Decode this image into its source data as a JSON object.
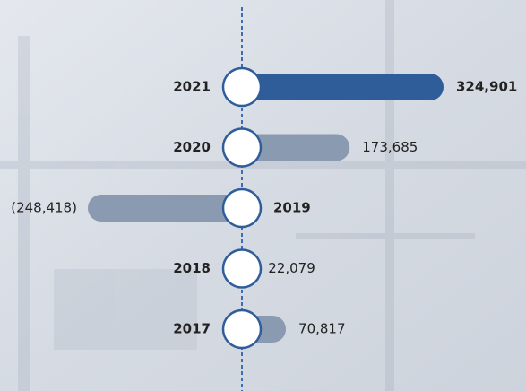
{
  "chart_data": {
    "type": "bar",
    "orientation": "horizontal",
    "categories": [
      "2021",
      "2020",
      "2019",
      "2018",
      "2017"
    ],
    "values": [
      324901,
      173685,
      -248418,
      22079,
      70817
    ],
    "value_labels": [
      "324,901",
      "173,685",
      "(248,418)",
      "22,079",
      "70,817"
    ],
    "color": "#8a9ab0",
    "highlight": "2021",
    "highlight_color": "#2f5d9a"
  }
}
